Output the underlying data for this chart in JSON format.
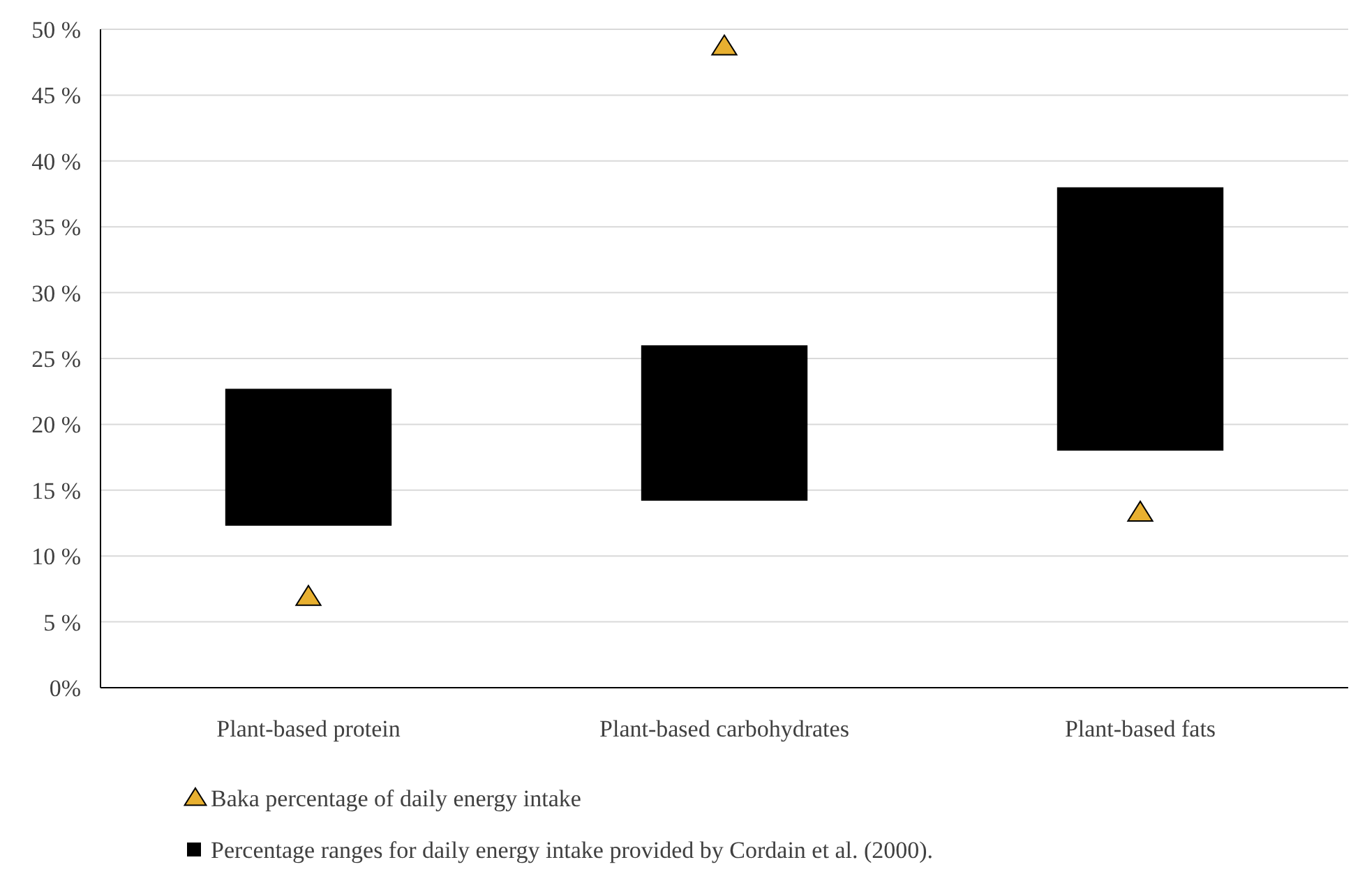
{
  "chart_data": {
    "type": "bar",
    "categories": [
      "Plant-based protein",
      "Plant-based carbohydrates",
      "Plant-based fats"
    ],
    "series": [
      {
        "type": "scatter",
        "name": "Baka percentage of daily energy intake",
        "color": "#e8b030",
        "marker": "triangle",
        "x": [
          "Plant-based protein",
          "Plant-based carbohydrates",
          "Plant-based fats"
        ],
        "values": [
          6.9,
          48.7,
          13.3
        ]
      },
      {
        "name": "Percentage ranges for daily energy intake provided by Cordain et al. (2000).",
        "color": "#000000",
        "base": [
          12.3,
          14.2,
          18.0
        ],
        "values": [
          10.4,
          11.8,
          20.0
        ]
      }
    ],
    "ylim": [
      0,
      50
    ],
    "yticks": [
      {
        "value": 0,
        "label": "0%"
      },
      {
        "value": 5,
        "label": "5 %"
      },
      {
        "value": 10,
        "label": "10 %"
      },
      {
        "value": 15,
        "label": "15 %"
      },
      {
        "value": 20,
        "label": "20 %"
      },
      {
        "value": 25,
        "label": "25 %"
      },
      {
        "value": 30,
        "label": "30 %"
      },
      {
        "value": 35,
        "label": "35 %"
      },
      {
        "value": 40,
        "label": "40 %"
      },
      {
        "value": 45,
        "label": "45 %"
      },
      {
        "value": 50,
        "label": "50 %"
      }
    ],
    "grid": "y",
    "legend": "bottom"
  }
}
